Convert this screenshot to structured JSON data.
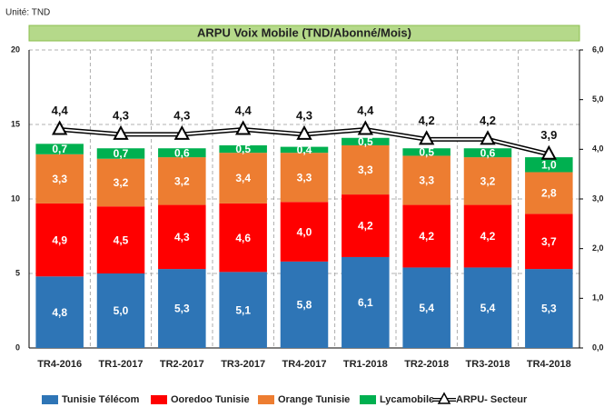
{
  "chart_data": {
    "type": "stacked_bar_line",
    "unit": "Unité: TND",
    "title": "ARPU Voix Mobile (TND/Abonné/Mois)",
    "categories": [
      "TR4-2016",
      "TR1-2017",
      "TR2-2017",
      "TR3-2017",
      "TR4-2017",
      "TR1-2018",
      "TR2-2018",
      "TR3-2018",
      "TR4-2018"
    ],
    "series": [
      {
        "name": "Tunisie Télécom",
        "color": "#2e75b6",
        "values": [
          4.8,
          5.0,
          5.3,
          5.1,
          5.8,
          6.1,
          5.4,
          5.4,
          5.3
        ],
        "value_labels": [
          "4,8",
          "5,0",
          "5,3",
          "5,1",
          "5,8",
          "6,1",
          "5,4",
          "5,4",
          "5,3"
        ]
      },
      {
        "name": "Ooredoo Tunisie",
        "color": "#ff0000",
        "values": [
          4.9,
          4.5,
          4.3,
          4.6,
          4.0,
          4.2,
          4.2,
          4.2,
          3.7
        ],
        "value_labels": [
          "4,9",
          "4,5",
          "4,3",
          "4,6",
          "4,0",
          "4,2",
          "4,2",
          "4,2",
          "3,7"
        ]
      },
      {
        "name": "Orange Tunisie",
        "color": "#ed7d31",
        "values": [
          3.3,
          3.2,
          3.2,
          3.4,
          3.3,
          3.3,
          3.3,
          3.2,
          2.8
        ],
        "value_labels": [
          "3,3",
          "3,2",
          "3,2",
          "3,4",
          "3,3",
          "3,3",
          "3,3",
          "3,2",
          "2,8"
        ]
      },
      {
        "name": "Lycamobile",
        "color": "#00b050",
        "values": [
          0.7,
          0.7,
          0.6,
          0.5,
          0.4,
          0.5,
          0.5,
          0.6,
          1.0
        ],
        "value_labels": [
          "0,7",
          "0,7",
          "0,6",
          "0,5",
          "0,4",
          "0,5",
          "0,5",
          "0,6",
          "1,0"
        ]
      },
      {
        "name": "ARPU- Secteur",
        "type": "line",
        "axis": "y2",
        "color": "#000000",
        "values": [
          4.4,
          4.3,
          4.3,
          4.4,
          4.3,
          4.4,
          4.2,
          4.2,
          3.9
        ],
        "value_labels": [
          "4,4",
          "4,3",
          "4,3",
          "4,4",
          "4,3",
          "4,4",
          "4,2",
          "4,2",
          "3,9"
        ]
      }
    ],
    "ylim": [
      0,
      20
    ],
    "yticks": [
      0,
      5,
      10,
      15,
      20
    ],
    "y2lim": [
      0,
      6
    ],
    "y2ticks": [
      {
        "value": 0,
        "label": "0,0"
      },
      {
        "value": 1,
        "label": "1,0"
      },
      {
        "value": 2,
        "label": "2,0"
      },
      {
        "value": 3,
        "label": "3,0"
      },
      {
        "value": 4,
        "label": "4,0"
      },
      {
        "value": 5,
        "label": "5,0"
      },
      {
        "value": 6,
        "label": "6,0"
      }
    ],
    "grid": true,
    "legend": "bottom"
  }
}
